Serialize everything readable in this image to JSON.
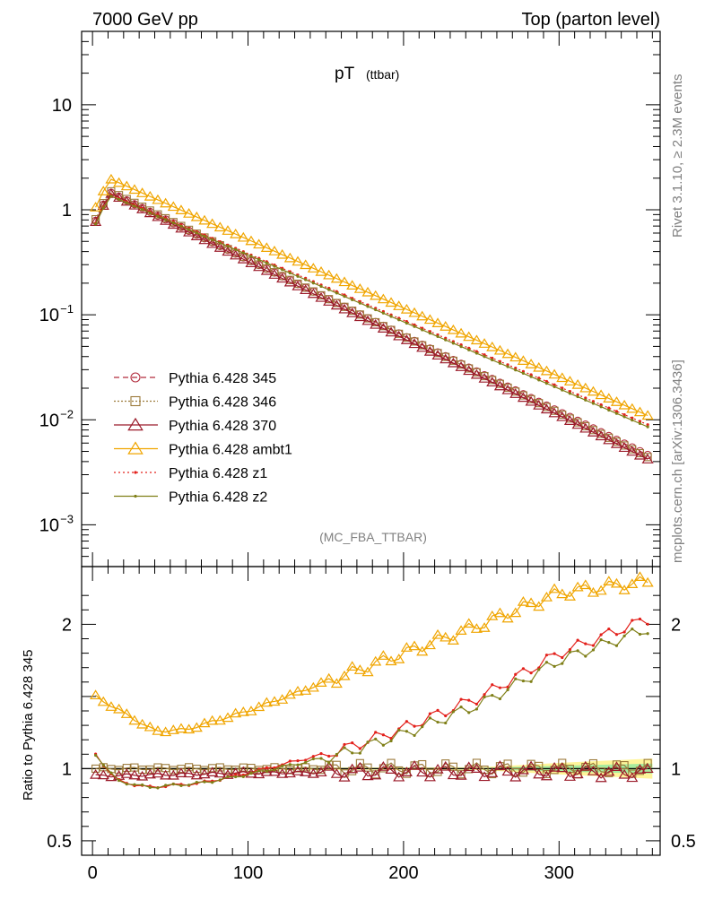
{
  "header": {
    "left": "7000 GeV pp",
    "right": "Top (parton level)"
  },
  "side_labels": {
    "rivet": "Rivet 3.1.10, ≥ 2.3M events",
    "mcplots": "mcplots.cern.ch [arXiv:1306.3436]"
  },
  "chart_data": [
    {
      "type": "line",
      "title": "pT",
      "title_suffix": "(ttbar)",
      "watermark": "(MC_FBA_TTBAR)",
      "xlim": [
        -7,
        365
      ],
      "ylim": [
        0.0004,
        50
      ],
      "yscale": "log",
      "yticks": [
        {
          "value": 10,
          "label": "10"
        },
        {
          "value": 1,
          "label": "1"
        },
        {
          "value": 0.1,
          "label": "10",
          "exp": "−1"
        },
        {
          "value": 0.01,
          "label": "10",
          "exp": "−2"
        },
        {
          "value": 0.001,
          "label": "10",
          "exp": "−3"
        }
      ],
      "legend": "center-left",
      "series": [
        {
          "name": "Pythia 6.428 345",
          "color": "#b22b3c",
          "marker": "circle",
          "dash": "6,4",
          "peak": 1.45,
          "tail": 0.0044
        },
        {
          "name": "Pythia 6.428 346",
          "color": "#9c7a3a",
          "marker": "square",
          "dash": "2,2",
          "peak": 1.5,
          "tail": 0.0042
        },
        {
          "name": "Pythia 6.428 370",
          "color": "#9b1b2a",
          "marker": "triangle",
          "dash": "",
          "peak": 1.42,
          "tail": 0.004
        },
        {
          "name": "Pythia 6.428 ambt1",
          "color": "#f0a500",
          "marker": "triangle",
          "dash": "",
          "peak": 1.95,
          "tail": 0.0105
        },
        {
          "name": "Pythia 6.428 z1",
          "color": "#e3201b",
          "marker": "dot",
          "dash": "2,3",
          "peak": 1.38,
          "tail": 0.0086
        },
        {
          "name": "Pythia 6.428 z2",
          "color": "#7f7f17",
          "marker": "dot",
          "dash": "",
          "peak": 1.35,
          "tail": 0.0082
        }
      ]
    },
    {
      "type": "line",
      "ylabel": "Ratio to Pythia 6.428 345",
      "xlim": [
        -7,
        365
      ],
      "ylim": [
        0.4,
        2.4
      ],
      "xticks": [
        0,
        100,
        200,
        300
      ],
      "yticks": [
        {
          "value": 2,
          "label": "2"
        },
        {
          "value": 1,
          "label": "1"
        },
        {
          "value": 0.5,
          "label": "0.5"
        }
      ],
      "series_ratio": [
        {
          "name": "Pythia 6.428 346",
          "points": [
            [
              2,
              1.0
            ],
            [
              100,
              1.0
            ],
            [
              200,
              1.0
            ],
            [
              300,
              1.0
            ],
            [
              360,
              1.0
            ]
          ]
        },
        {
          "name": "Pythia 6.428 370",
          "points": [
            [
              2,
              0.95
            ],
            [
              50,
              0.96
            ],
            [
              100,
              0.97
            ],
            [
              200,
              0.98
            ],
            [
              300,
              0.98
            ],
            [
              360,
              0.97
            ]
          ]
        },
        {
          "name": "Pythia 6.428 ambt1",
          "points": [
            [
              2,
              1.5
            ],
            [
              40,
              1.26
            ],
            [
              60,
              1.27
            ],
            [
              100,
              1.4
            ],
            [
              150,
              1.6
            ],
            [
              200,
              1.8
            ],
            [
              250,
              2.0
            ],
            [
              300,
              2.22
            ],
            [
              360,
              2.3
            ]
          ]
        },
        {
          "name": "Pythia 6.428 z1",
          "points": [
            [
              2,
              1.1
            ],
            [
              15,
              0.92
            ],
            [
              35,
              0.87
            ],
            [
              70,
              0.9
            ],
            [
              100,
              0.97
            ],
            [
              130,
              1.05
            ],
            [
              160,
              1.13
            ],
            [
              200,
              1.28
            ],
            [
              250,
              1.5
            ],
            [
              300,
              1.8
            ],
            [
              360,
              2.05
            ]
          ]
        },
        {
          "name": "Pythia 6.428 z2",
          "points": [
            [
              2,
              1.1
            ],
            [
              15,
              0.92
            ],
            [
              35,
              0.87
            ],
            [
              70,
              0.9
            ],
            [
              100,
              0.96
            ],
            [
              130,
              1.03
            ],
            [
              160,
              1.1
            ],
            [
              200,
              1.24
            ],
            [
              250,
              1.45
            ],
            [
              300,
              1.75
            ],
            [
              360,
              1.98
            ]
          ]
        }
      ]
    }
  ]
}
